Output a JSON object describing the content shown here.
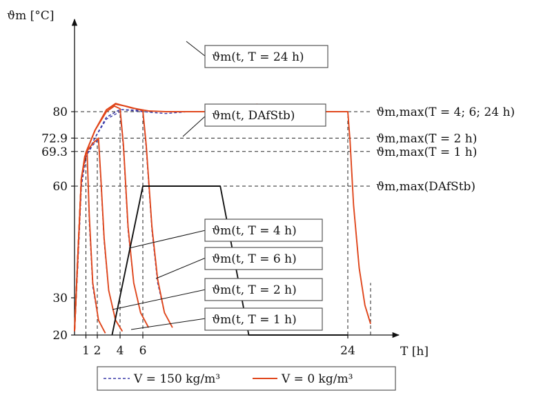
{
  "chart_data": {
    "type": "line",
    "ylabel": "ϑm [°C]",
    "xlabel": "T [h]",
    "ylim": [
      20,
      84
    ],
    "xlim": [
      0,
      27
    ],
    "x_ticks": [
      {
        "v": 1,
        "label": "1"
      },
      {
        "v": 2,
        "label": "2"
      },
      {
        "v": 4,
        "label": "4"
      },
      {
        "v": 6,
        "label": "6"
      },
      {
        "v": 24,
        "label": "24"
      }
    ],
    "y_ticks": [
      {
        "v": 20,
        "label": "20"
      },
      {
        "v": 30,
        "label": "30"
      },
      {
        "v": 60,
        "label": "60"
      },
      {
        "v": 69.3,
        "label": "69.3"
      },
      {
        "v": 72.9,
        "label": "72.9"
      },
      {
        "v": 80,
        "label": "80"
      }
    ],
    "reference_lines": [
      {
        "y": 80,
        "label": "ϑm,max(T = 4; 6; 24 h)"
      },
      {
        "y": 72.9,
        "label": "ϑm,max(T = 2 h)"
      },
      {
        "y": 69.3,
        "label": "ϑm,max(T = 1 h)"
      },
      {
        "y": 60,
        "label": "ϑm,max(DAfStb)"
      }
    ],
    "vertical_markers": [
      1,
      2,
      4,
      6,
      24,
      26
    ],
    "curve_labels": [
      "ϑm(t, T = 24 h)",
      "ϑm(t, DAfStb)",
      "ϑm(t, T = 4 h)",
      "ϑm(t, T = 6 h)",
      "ϑm(t, T = 2 h)",
      "ϑm(t, T = 1 h)"
    ],
    "legend": [
      {
        "label": "V = 150 kg/m³",
        "style": "dashed",
        "color": "#3b3ba8"
      },
      {
        "label": "V = 0 kg/m³",
        "style": "solid",
        "color": "#e0461b"
      }
    ],
    "series": [
      {
        "name": "V = 150 kg/m³",
        "color": "#3b3ba8",
        "dash": true,
        "curves": [
          [
            [
              0,
              21
            ],
            [
              0.3,
              40
            ],
            [
              0.6,
              60
            ],
            [
              0.9,
              67
            ],
            [
              1.1,
              69
            ],
            [
              1.3,
              50
            ],
            [
              1.6,
              33
            ],
            [
              2.1,
              24
            ],
            [
              2.7,
              20.5
            ]
          ],
          [
            [
              0,
              21
            ],
            [
              0.3,
              40
            ],
            [
              0.6,
              60
            ],
            [
              1,
              68
            ],
            [
              1.6,
              71
            ],
            [
              2.1,
              72.5
            ],
            [
              2.3,
              62
            ],
            [
              2.6,
              45
            ],
            [
              3.0,
              32
            ],
            [
              3.6,
              24
            ],
            [
              4.2,
              21
            ]
          ],
          [
            [
              0,
              21
            ],
            [
              0.3,
              40
            ],
            [
              0.6,
              60
            ],
            [
              1,
              68
            ],
            [
              1.8,
              73
            ],
            [
              2.8,
              78
            ],
            [
              4.0,
              80
            ],
            [
              4.3,
              70
            ],
            [
              4.7,
              48
            ],
            [
              5.2,
              34
            ],
            [
              5.8,
              26
            ],
            [
              6.5,
              22
            ]
          ],
          [
            [
              0,
              21
            ],
            [
              0.3,
              40
            ],
            [
              0.6,
              60
            ],
            [
              1,
              68
            ],
            [
              1.8,
              73
            ],
            [
              2.8,
              78.5
            ],
            [
              4,
              80.6
            ],
            [
              5.5,
              80.4
            ],
            [
              6.0,
              80
            ],
            [
              6.3,
              70
            ],
            [
              6.8,
              48
            ],
            [
              7.3,
              34
            ],
            [
              7.9,
              26
            ],
            [
              8.6,
              22
            ]
          ],
          [
            [
              0,
              21
            ],
            [
              0.3,
              40
            ],
            [
              0.6,
              60
            ],
            [
              1,
              68
            ],
            [
              1.8,
              73
            ],
            [
              2.8,
              78.5
            ],
            [
              4,
              80.6
            ],
            [
              6,
              80
            ],
            [
              8,
              79.5
            ],
            [
              10,
              80
            ],
            [
              12,
              80
            ],
            [
              14,
              80
            ],
            [
              15.5,
              80.5
            ],
            [
              16,
              81.2
            ],
            [
              17,
              80.8
            ],
            [
              18.5,
              80.2
            ],
            [
              20,
              80
            ],
            [
              22,
              80
            ],
            [
              24,
              80
            ],
            [
              24.2,
              72
            ],
            [
              24.5,
              55
            ],
            [
              25,
              38
            ],
            [
              25.5,
              28
            ],
            [
              26,
              23
            ]
          ]
        ]
      },
      {
        "name": "V = 0 kg/m³",
        "color": "#e0461b",
        "dash": false,
        "curves": [
          [
            [
              0,
              21
            ],
            [
              0.3,
              42
            ],
            [
              0.6,
              62
            ],
            [
              0.9,
              68
            ],
            [
              1.1,
              69.3
            ],
            [
              1.3,
              52
            ],
            [
              1.6,
              34
            ],
            [
              2.1,
              24
            ],
            [
              2.7,
              20.5
            ]
          ],
          [
            [
              0,
              21
            ],
            [
              0.3,
              42
            ],
            [
              0.6,
              62
            ],
            [
              1,
              69
            ],
            [
              1.6,
              71.5
            ],
            [
              2.1,
              72.9
            ],
            [
              2.3,
              63
            ],
            [
              2.6,
              46
            ],
            [
              3.0,
              32
            ],
            [
              3.6,
              24
            ],
            [
              4.2,
              21
            ]
          ],
          [
            [
              0,
              21
            ],
            [
              0.3,
              42
            ],
            [
              0.6,
              62
            ],
            [
              1,
              69
            ],
            [
              1.8,
              75
            ],
            [
              2.8,
              80
            ],
            [
              3.5,
              81.5
            ],
            [
              4.0,
              80.8
            ],
            [
              4.3,
              71
            ],
            [
              4.7,
              49
            ],
            [
              5.2,
              34
            ],
            [
              5.8,
              26
            ],
            [
              6.5,
              22
            ]
          ],
          [
            [
              0,
              21
            ],
            [
              0.3,
              42
            ],
            [
              0.6,
              62
            ],
            [
              1,
              69
            ],
            [
              1.8,
              75
            ],
            [
              2.8,
              80.5
            ],
            [
              3.6,
              82
            ],
            [
              4.5,
              81.5
            ],
            [
              6.0,
              80.3
            ],
            [
              6.3,
              71
            ],
            [
              6.8,
              49
            ],
            [
              7.3,
              35
            ],
            [
              7.9,
              26
            ],
            [
              8.6,
              22
            ]
          ],
          [
            [
              0,
              21
            ],
            [
              0.3,
              42
            ],
            [
              0.6,
              62
            ],
            [
              1,
              69
            ],
            [
              1.8,
              75
            ],
            [
              2.8,
              80.5
            ],
            [
              3.6,
              82.2
            ],
            [
              5,
              81
            ],
            [
              6.5,
              80.2
            ],
            [
              8,
              80
            ],
            [
              10,
              80
            ],
            [
              12,
              80
            ],
            [
              14,
              80
            ],
            [
              15.5,
              80.8
            ],
            [
              16,
              82
            ],
            [
              17,
              81.4
            ],
            [
              18.5,
              80.5
            ],
            [
              20,
              80.2
            ],
            [
              22,
              80
            ],
            [
              24,
              80
            ],
            [
              24.2,
              72
            ],
            [
              24.5,
              55
            ],
            [
              25,
              38
            ],
            [
              25.5,
              28
            ],
            [
              26,
              23
            ]
          ]
        ]
      },
      {
        "name": "DAfStb",
        "color": "#111111",
        "dash": false,
        "curves": [
          [
            [
              3.3,
              20
            ],
            [
              6,
              60
            ],
            [
              12.8,
              60
            ],
            [
              15.3,
              20
            ],
            [
              24,
              20
            ]
          ]
        ]
      }
    ]
  }
}
